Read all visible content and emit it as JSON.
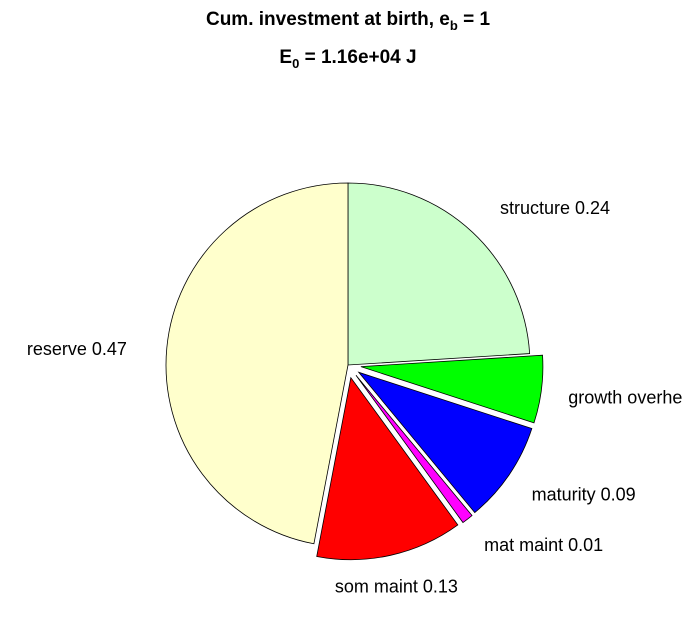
{
  "chart_data": {
    "type": "pie",
    "title": [
      "Cum. investment at birth, e",
      "b",
      " = 1"
    ],
    "subtitle": [
      "E",
      "0",
      " = 1.16e+04 J"
    ],
    "categories": [
      "structure 0.24",
      "growth overhe",
      "maturity 0.09",
      "mat maint 0.01",
      "som maint 0.13",
      "reserve 0.47"
    ],
    "values": [
      0.24,
      0.06,
      0.09,
      0.01,
      0.13,
      0.47
    ],
    "colors": [
      "#ccffcc",
      "#00ff00",
      "#0000ff",
      "#ff00ff",
      "#ff0000",
      "#ffffcc"
    ],
    "explode": [
      false,
      true,
      true,
      true,
      true,
      false
    ]
  }
}
